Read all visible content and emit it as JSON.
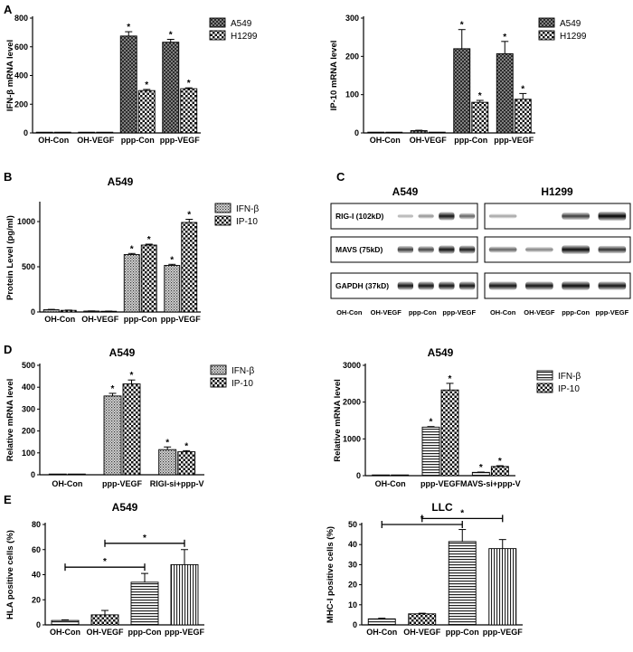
{
  "panel_labels": [
    "A",
    "B",
    "C",
    "D",
    "E"
  ],
  "colors": {
    "fill_dark": "#2a2a2a",
    "fill_light": "#ffffff",
    "axis": "#000000"
  },
  "chart_data": [
    {
      "id": "A1",
      "type": "bar",
      "title": "",
      "xlabel": "",
      "ylabel": "IFN-β mRNA level",
      "categories": [
        "OH-Con",
        "OH-VEGF",
        "ppp-Con",
        "ppp-VEGF"
      ],
      "ylim": [
        0,
        800
      ],
      "yticks": [
        0,
        200,
        400,
        600,
        800
      ],
      "legend": "top-right",
      "series": [
        {
          "name": "A549",
          "pattern": "cross",
          "values": [
            2,
            3,
            675,
            632
          ],
          "errors": [
            0,
            0,
            30,
            20
          ],
          "stars": [
            false,
            false,
            true,
            true
          ]
        },
        {
          "name": "H1299",
          "pattern": "check",
          "values": [
            1,
            2,
            295,
            308
          ],
          "errors": [
            0,
            0,
            8,
            6
          ],
          "stars": [
            false,
            false,
            true,
            true
          ]
        }
      ]
    },
    {
      "id": "A2",
      "type": "bar",
      "title": "",
      "xlabel": "",
      "ylabel": "IP-10 mRNA level",
      "categories": [
        "OH-Con",
        "OH-VEGF",
        "ppp-Con",
        "ppp-VEGF"
      ],
      "ylim": [
        0,
        300
      ],
      "yticks": [
        0,
        100,
        200,
        300
      ],
      "legend": "top-right",
      "series": [
        {
          "name": "A549",
          "pattern": "cross",
          "values": [
            2,
            6,
            220,
            207
          ],
          "errors": [
            0,
            1,
            50,
            32
          ],
          "stars": [
            false,
            false,
            true,
            true
          ]
        },
        {
          "name": "H1299",
          "pattern": "check",
          "values": [
            1,
            2,
            80,
            88
          ],
          "errors": [
            0,
            0,
            5,
            15
          ],
          "stars": [
            false,
            false,
            true,
            true
          ]
        }
      ]
    },
    {
      "id": "B",
      "type": "bar",
      "title": "A549",
      "xlabel": "",
      "ylabel": "Protein Level (pg/ml)",
      "categories": [
        "OH-Con",
        "OH-VEGF",
        "ppp-Con",
        "ppp-VEGF"
      ],
      "ylim": [
        0,
        1200
      ],
      "yticks": [
        0,
        500,
        1000
      ],
      "legend": "top-right",
      "series": [
        {
          "name": "IFN-β",
          "pattern": "stipple",
          "values": [
            25,
            10,
            635,
            515
          ],
          "errors": [
            4,
            2,
            12,
            12
          ],
          "stars": [
            false,
            false,
            true,
            true
          ]
        },
        {
          "name": "IP-10",
          "pattern": "check",
          "values": [
            18,
            8,
            740,
            990
          ],
          "errors": [
            3,
            2,
            10,
            35
          ],
          "stars": [
            false,
            false,
            true,
            true
          ]
        }
      ]
    },
    {
      "id": "D1",
      "type": "bar",
      "title": "A549",
      "xlabel": "",
      "ylabel": "Relative mRNA level",
      "categories": [
        "OH-Con",
        "ppp-VEGF",
        "RIGI-si+ppp-V"
      ],
      "ylim": [
        0,
        500
      ],
      "yticks": [
        0,
        100,
        200,
        300,
        400,
        500
      ],
      "legend": "top-right",
      "series": [
        {
          "name": "IFN-β",
          "pattern": "stipple",
          "values": [
            1,
            360,
            115
          ],
          "errors": [
            0,
            12,
            12
          ],
          "stars": [
            false,
            true,
            true
          ]
        },
        {
          "name": "IP-10",
          "pattern": "check",
          "values": [
            1,
            415,
            105
          ],
          "errors": [
            0,
            18,
            5
          ],
          "stars": [
            false,
            true,
            true
          ]
        }
      ]
    },
    {
      "id": "D2",
      "type": "bar",
      "title": "A549",
      "xlabel": "",
      "ylabel": "Relative mRNA level",
      "categories": [
        "OH-Con",
        "ppp-VEGF",
        "MAVS-si+ppp-V"
      ],
      "ylim": [
        0,
        3000
      ],
      "yticks": [
        0,
        1000,
        2000,
        3000
      ],
      "legend": "top-right",
      "series": [
        {
          "name": "IFN-β",
          "pattern": "hstripe",
          "values": [
            3,
            1320,
            90
          ],
          "errors": [
            0,
            15,
            8
          ],
          "stars": [
            false,
            true,
            true
          ]
        },
        {
          "name": "IP-10",
          "pattern": "check",
          "values": [
            3,
            2330,
            250
          ],
          "errors": [
            0,
            180,
            20
          ],
          "stars": [
            false,
            true,
            true
          ]
        }
      ]
    },
    {
      "id": "E1",
      "type": "bar",
      "title": "A549",
      "xlabel": "",
      "ylabel": "HLA positive cells (%)",
      "categories": [
        "OH-Con",
        "OH-VEGF",
        "ppp-Con",
        "ppp-VEGF"
      ],
      "ylim": [
        0,
        80
      ],
      "yticks": [
        0,
        20,
        40,
        60,
        80
      ],
      "series": [
        {
          "name": "",
          "patterns": [
            "hstripe",
            "check",
            "hstripe",
            "vstripe"
          ],
          "values": [
            3.5,
            8,
            34,
            48
          ],
          "errors": [
            0.5,
            3.5,
            7,
            12
          ]
        }
      ],
      "brackets": [
        {
          "from": 0,
          "to": 2,
          "y": 46,
          "label": "*"
        },
        {
          "from": 1,
          "to": 3,
          "y": 65,
          "label": "*"
        }
      ]
    },
    {
      "id": "E2",
      "type": "bar",
      "title": "LLC",
      "xlabel": "",
      "ylabel": "MHC-I positive cells (%)",
      "categories": [
        "OH-Con",
        "OH-VEGF",
        "ppp-Con",
        "ppp-VEGF"
      ],
      "ylim": [
        0,
        50
      ],
      "yticks": [
        0,
        10,
        20,
        30,
        40,
        50
      ],
      "series": [
        {
          "name": "",
          "patterns": [
            "hstripe",
            "check",
            "hstripe",
            "vstripe"
          ],
          "values": [
            3,
            5.5,
            41.5,
            38
          ],
          "errors": [
            0.3,
            0.3,
            6,
            4.5
          ]
        }
      ],
      "brackets": [
        {
          "from": 0,
          "to": 2,
          "y": 50,
          "label": "*"
        },
        {
          "from": 1,
          "to": 3,
          "y": 53,
          "label": "*"
        }
      ]
    }
  ],
  "western": {
    "cell_lines": [
      "A549",
      "H1299"
    ],
    "rows": [
      "RIG-I (102kD)",
      "MAVS (75kD)",
      "GAPDH (37kD)"
    ],
    "lanes": [
      "OH-Con",
      "OH-VEGF",
      "ppp-Con",
      "ppp-VEGF"
    ],
    "intensity": {
      "A549": [
        [
          0.08,
          0.22,
          0.85,
          0.45
        ],
        [
          0.65,
          0.6,
          0.85,
          0.8
        ],
        [
          0.85,
          0.85,
          0.85,
          0.85
        ]
      ],
      "H1299": [
        [
          0.15,
          0.0,
          0.65,
          0.95
        ],
        [
          0.45,
          0.3,
          0.9,
          0.7
        ],
        [
          0.85,
          0.85,
          0.9,
          0.85
        ]
      ]
    }
  }
}
